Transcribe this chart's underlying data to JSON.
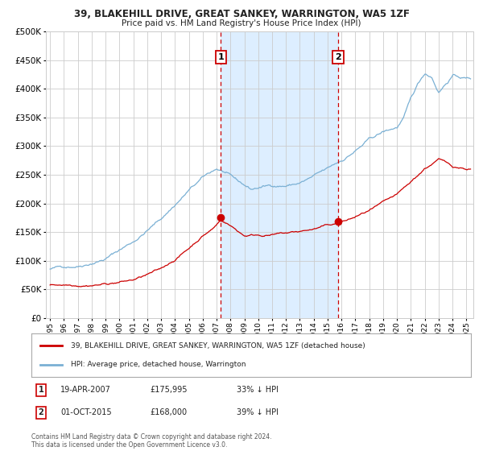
{
  "title1": "39, BLAKEHILL DRIVE, GREAT SANKEY, WARRINGTON, WA5 1ZF",
  "title2": "Price paid vs. HM Land Registry's House Price Index (HPI)",
  "ylim": [
    0,
    500000
  ],
  "yticks": [
    0,
    50000,
    100000,
    150000,
    200000,
    250000,
    300000,
    350000,
    400000,
    450000,
    500000
  ],
  "xlim_start": 1994.7,
  "xlim_end": 2025.5,
  "hpi_color": "#7ab0d4",
  "sale_color": "#cc0000",
  "background_color": "#ffffff",
  "grid_color": "#cccccc",
  "shaded_region_color": "#ddeeff",
  "dashed_line_color": "#cc0000",
  "ann1_x": 2007.3,
  "ann1_y": 175995,
  "ann2_x": 2015.75,
  "ann2_y": 168000,
  "ann1_label": "1",
  "ann2_label": "2",
  "annotation1": {
    "num": "1",
    "date": "19-APR-2007",
    "price": "£175,995",
    "pct": "33% ↓ HPI"
  },
  "annotation2": {
    "num": "2",
    "date": "01-OCT-2015",
    "price": "£168,000",
    "pct": "39% ↓ HPI"
  },
  "legend_entry1": "39, BLAKEHILL DRIVE, GREAT SANKEY, WARRINGTON, WA5 1ZF (detached house)",
  "legend_entry2": "HPI: Average price, detached house, Warrington",
  "footer": "Contains HM Land Registry data © Crown copyright and database right 2024.\nThis data is licensed under the Open Government Licence v3.0.",
  "xtick_years": [
    1995,
    1996,
    1997,
    1998,
    1999,
    2000,
    2001,
    2002,
    2003,
    2004,
    2005,
    2006,
    2007,
    2008,
    2009,
    2010,
    2011,
    2012,
    2013,
    2014,
    2015,
    2016,
    2017,
    2018,
    2019,
    2020,
    2021,
    2022,
    2023,
    2024,
    2025
  ]
}
